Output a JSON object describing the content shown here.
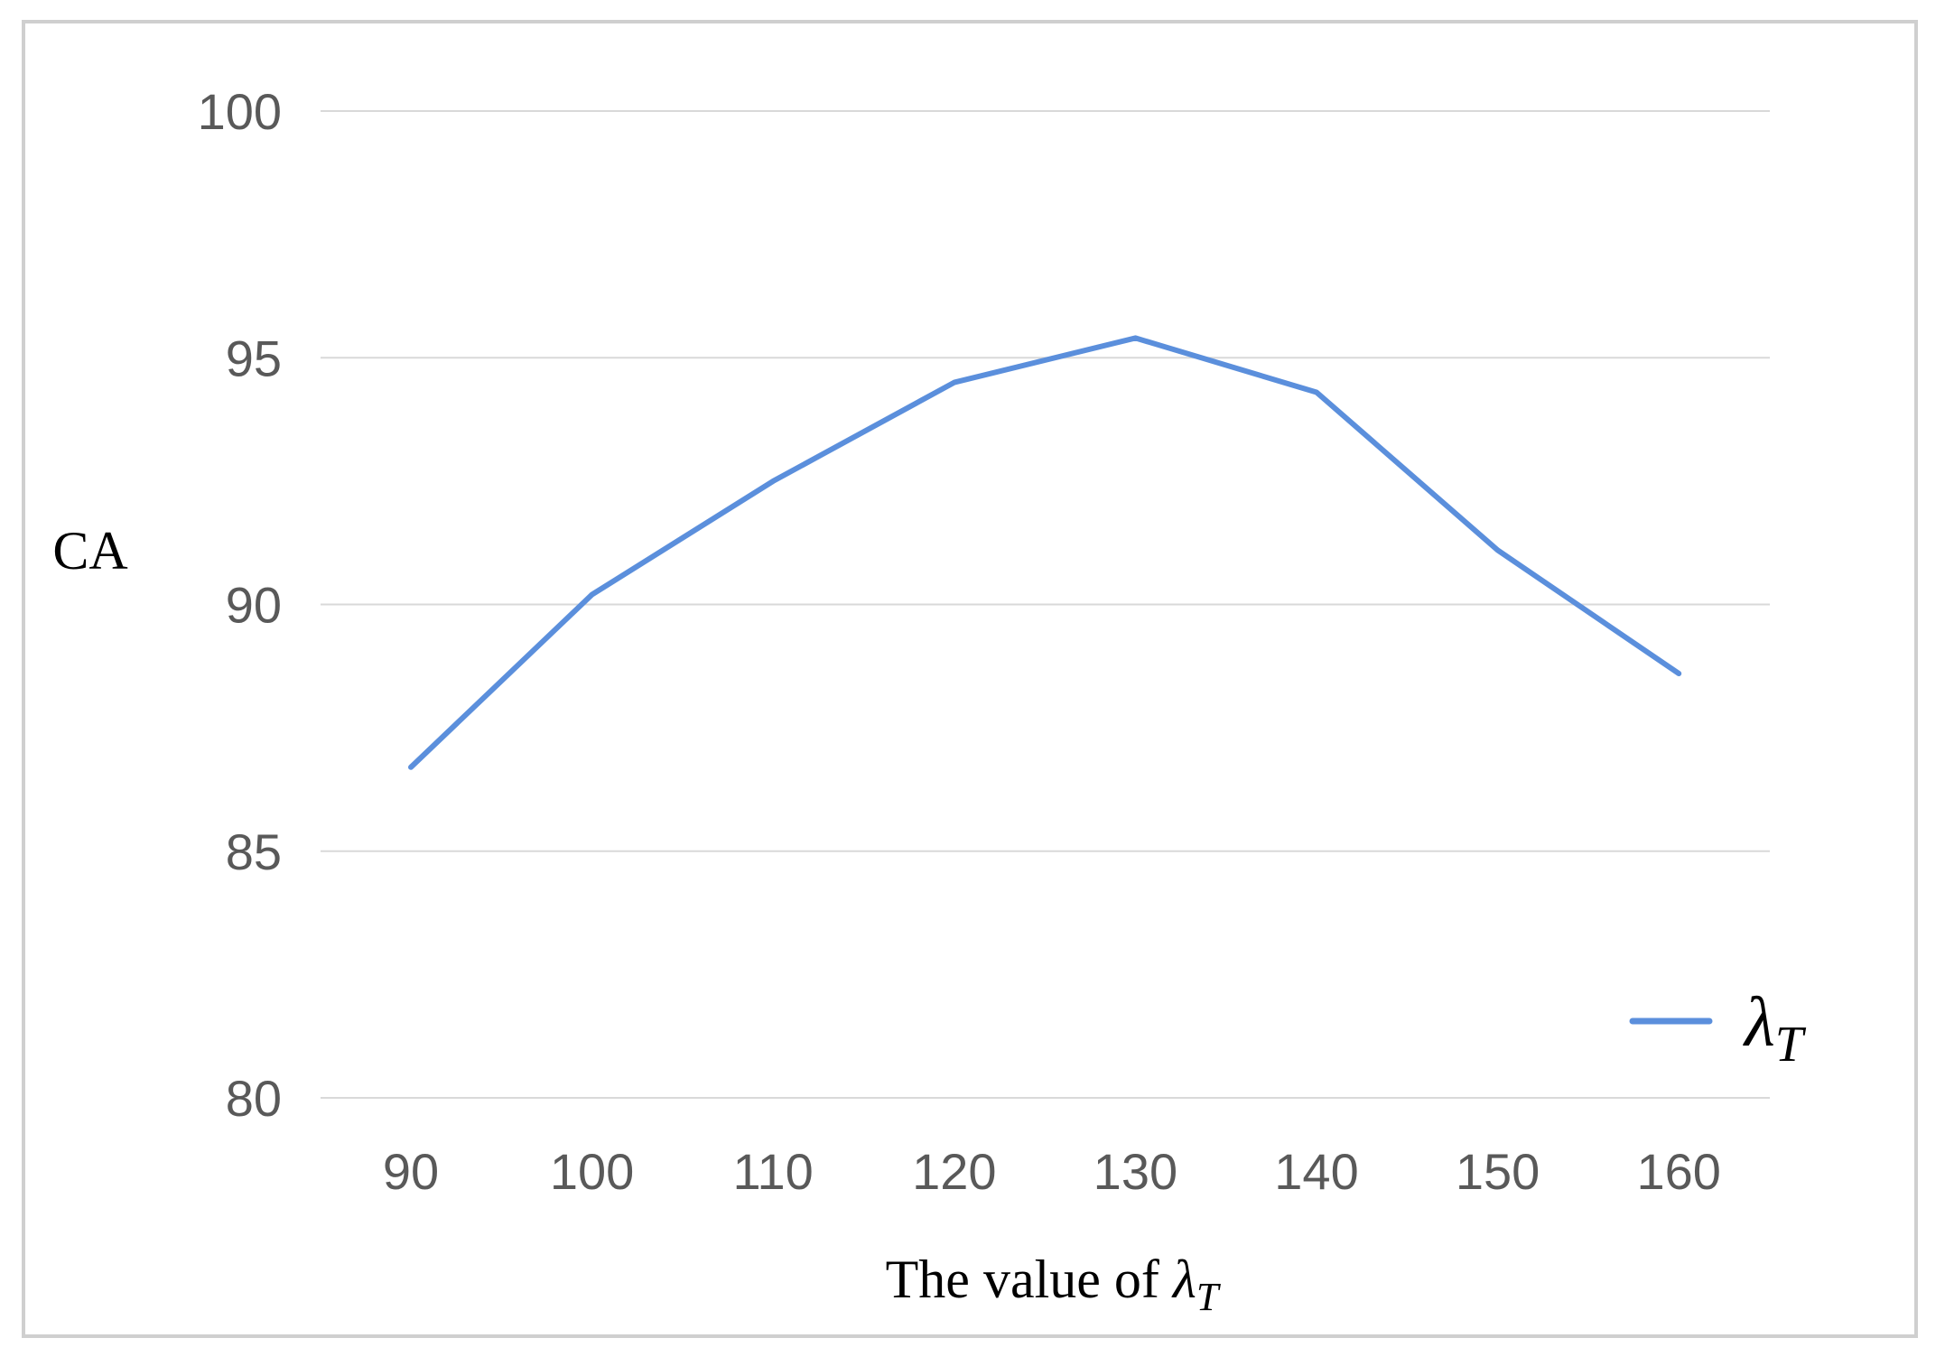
{
  "chart_data": {
    "type": "line",
    "x": [
      90,
      100,
      110,
      120,
      130,
      140,
      150,
      160
    ],
    "series": [
      {
        "name": "λT",
        "values": [
          86.7,
          90.2,
          92.5,
          94.5,
          95.4,
          94.3,
          91.1,
          88.6
        ],
        "color": "#5B8FDC"
      }
    ],
    "xlabel": "The value of λT",
    "ylabel": "CA",
    "ylim": [
      80,
      100
    ],
    "yticks": [
      80,
      85,
      90,
      95,
      100
    ],
    "grid": "horizontal",
    "legend_position": "bottom-right"
  }
}
